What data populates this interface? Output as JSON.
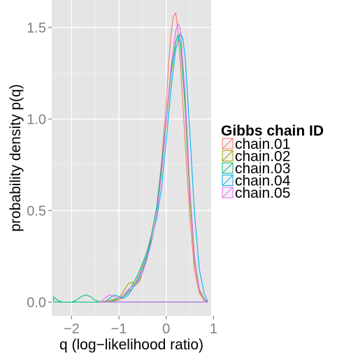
{
  "chart_data": {
    "type": "area",
    "xlabel": "q (log−likelihood ratio)",
    "ylabel": "probability density p(q)",
    "xlim": [
      -2.42,
      0.95
    ],
    "ylim": [
      -0.075,
      1.65
    ],
    "x_ticks": [
      -2,
      -1,
      0,
      1
    ],
    "x_tick_labels": [
      "−2",
      "−1",
      "0",
      "1"
    ],
    "y_ticks": [
      0.0,
      0.5,
      1.0,
      1.5
    ],
    "y_tick_labels": [
      "0.0",
      "0.5",
      "1.0",
      "1.5"
    ],
    "grid": true,
    "legend": {
      "title": "Gibbs chain ID",
      "position": "right"
    },
    "series": [
      {
        "name": "chain.01",
        "color": "#F8766D",
        "x": [
          -1.3,
          -1.0,
          -0.85,
          -0.7,
          -0.55,
          -0.4,
          -0.3,
          -0.2,
          -0.1,
          0.0,
          0.05,
          0.1,
          0.15,
          0.2,
          0.25,
          0.3,
          0.4,
          0.5,
          0.6,
          0.7,
          0.8,
          0.88
        ],
        "y": [
          0.0,
          0.01,
          0.04,
          0.08,
          0.16,
          0.28,
          0.38,
          0.52,
          0.76,
          1.08,
          1.3,
          1.46,
          1.56,
          1.58,
          1.48,
          1.3,
          0.88,
          0.46,
          0.17,
          0.05,
          0.01,
          0.0
        ]
      },
      {
        "name": "chain.02",
        "color": "#A3A500",
        "x": [
          -1.4,
          -1.0,
          -0.9,
          -0.8,
          -0.72,
          -0.65,
          -0.55,
          -0.4,
          -0.3,
          -0.2,
          -0.1,
          0.0,
          0.1,
          0.2,
          0.25,
          0.3,
          0.4,
          0.5,
          0.6,
          0.7,
          0.8,
          0.88
        ],
        "y": [
          0.0,
          0.02,
          0.06,
          0.1,
          0.11,
          0.09,
          0.12,
          0.25,
          0.38,
          0.52,
          0.72,
          0.98,
          1.24,
          1.42,
          1.46,
          1.42,
          1.06,
          0.56,
          0.22,
          0.06,
          0.01,
          0.0
        ]
      },
      {
        "name": "chain.03",
        "color": "#00BF7D",
        "x": [
          -2.38,
          -2.3,
          -2.2,
          -2.1,
          -2.0,
          -1.9,
          -1.8,
          -1.7,
          -1.6,
          -1.5,
          -1.4,
          -1.3,
          -1.2,
          -1.1,
          -1.0,
          -0.9,
          -0.8,
          -0.7,
          -0.6,
          -0.5,
          -0.4,
          -0.3,
          -0.2,
          -0.1,
          0.0,
          0.1,
          0.2,
          0.25,
          0.3,
          0.4,
          0.5,
          0.6,
          0.7,
          0.8,
          0.88
        ],
        "y": [
          0.03,
          0.01,
          0.0,
          0.0,
          0.0,
          0.01,
          0.03,
          0.04,
          0.03,
          0.01,
          0.0,
          0.0,
          0.0,
          0.01,
          0.02,
          0.03,
          0.06,
          0.1,
          0.15,
          0.21,
          0.28,
          0.38,
          0.52,
          0.74,
          1.0,
          1.26,
          1.42,
          1.46,
          1.42,
          1.08,
          0.6,
          0.24,
          0.07,
          0.02,
          0.0
        ]
      },
      {
        "name": "chain.04",
        "color": "#00B0F6",
        "x": [
          -1.3,
          -1.2,
          -1.1,
          -1.0,
          -0.9,
          -0.8,
          -0.7,
          -0.6,
          -0.5,
          -0.4,
          -0.3,
          -0.2,
          -0.1,
          0.0,
          0.1,
          0.2,
          0.3,
          0.35,
          0.4,
          0.5,
          0.6,
          0.7,
          0.8,
          0.88
        ],
        "y": [
          0.0,
          0.02,
          0.04,
          0.03,
          0.02,
          0.04,
          0.08,
          0.12,
          0.18,
          0.26,
          0.35,
          0.46,
          0.62,
          0.88,
          1.16,
          1.38,
          1.47,
          1.44,
          1.34,
          0.92,
          0.48,
          0.18,
          0.05,
          0.0
        ]
      },
      {
        "name": "chain.05",
        "color": "#E76BF3",
        "x": [
          -1.4,
          -1.3,
          -1.2,
          -1.1,
          -1.0,
          -0.9,
          -0.8,
          -0.7,
          -0.6,
          -0.5,
          -0.4,
          -0.3,
          -0.2,
          -0.1,
          0.0,
          0.1,
          0.2,
          0.25,
          0.3,
          0.4,
          0.5,
          0.6,
          0.7,
          0.8,
          0.88
        ],
        "y": [
          0.0,
          0.02,
          0.04,
          0.03,
          0.02,
          0.04,
          0.07,
          0.09,
          0.11,
          0.16,
          0.24,
          0.34,
          0.48,
          0.7,
          0.98,
          1.28,
          1.48,
          1.52,
          1.49,
          1.14,
          0.62,
          0.24,
          0.07,
          0.02,
          0.0
        ]
      }
    ]
  }
}
